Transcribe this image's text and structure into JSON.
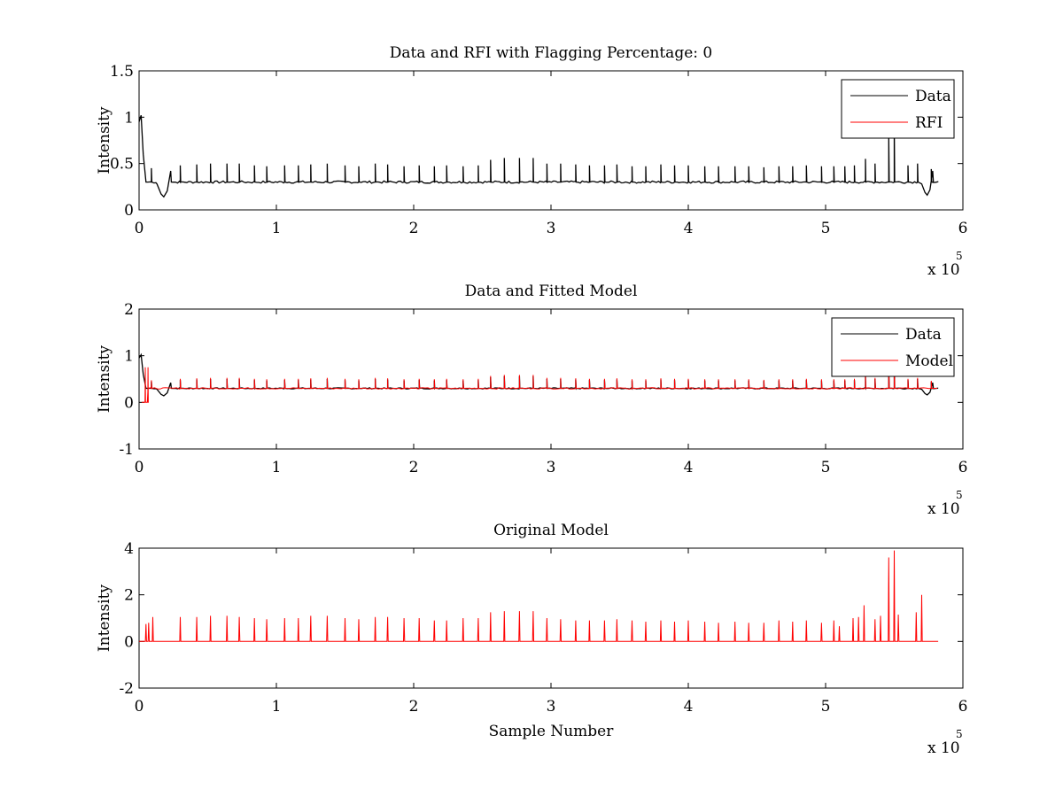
{
  "chart_data": [
    {
      "type": "line",
      "title": "Data and RFI with Flagging Percentage: 0",
      "xlabel": "",
      "ylabel": "Intensity",
      "xlim": [
        0,
        600000
      ],
      "ylim": [
        0,
        1.5
      ],
      "xticks": [
        0,
        100000,
        200000,
        300000,
        400000,
        500000,
        600000
      ],
      "xtick_labels": [
        "0",
        "1",
        "2",
        "3",
        "4",
        "5",
        "6"
      ],
      "yticks": [
        0,
        0.5,
        1,
        1.5
      ],
      "ytick_labels": [
        "0",
        "0.5",
        "1",
        "1.5"
      ],
      "x_multiplier_label": "x 10",
      "x_multiplier_exponent": "5",
      "legend_position": "top-right",
      "legend": [
        "Data",
        "RFI"
      ],
      "baseline": 0.3,
      "dips": [
        {
          "x": 18000,
          "depth": 0.16,
          "width": 5000
        },
        {
          "x": 574000,
          "depth": 0.14,
          "width": 4000
        }
      ],
      "onset": [
        [
          0,
          0.95
        ],
        [
          1500,
          1.02
        ],
        [
          3000,
          0.6
        ],
        [
          5000,
          0.3
        ]
      ],
      "spikes_x": [
        9000,
        30000,
        42000,
        52000,
        64000,
        73000,
        84000,
        93000,
        106000,
        116000,
        125000,
        137000,
        150000,
        160000,
        172000,
        181000,
        193000,
        204000,
        215000,
        224000,
        236000,
        247000,
        256000,
        266000,
        277000,
        287000,
        297000,
        307000,
        318000,
        328000,
        339000,
        348000,
        359000,
        369000,
        380000,
        390000,
        400000,
        412000,
        422000,
        434000,
        444000,
        455000,
        466000,
        476000,
        486000,
        497000,
        506000,
        514000,
        521000,
        529000,
        536000,
        546000,
        550000,
        560000,
        567000,
        577000
      ],
      "spikes_y": [
        0.45,
        0.48,
        0.49,
        0.5,
        0.5,
        0.5,
        0.48,
        0.47,
        0.48,
        0.48,
        0.49,
        0.5,
        0.48,
        0.47,
        0.5,
        0.49,
        0.47,
        0.48,
        0.47,
        0.48,
        0.47,
        0.48,
        0.54,
        0.56,
        0.56,
        0.56,
        0.5,
        0.5,
        0.49,
        0.48,
        0.48,
        0.49,
        0.47,
        0.47,
        0.49,
        0.48,
        0.48,
        0.47,
        0.47,
        0.47,
        0.47,
        0.46,
        0.47,
        0.47,
        0.48,
        0.47,
        0.47,
        0.47,
        0.48,
        0.55,
        0.5,
        0.78,
        0.95,
        0.48,
        0.5,
        0.44
      ],
      "series": [
        {
          "name": "Data",
          "color": "#000000"
        },
        {
          "name": "RFI",
          "color": "#ff0000"
        }
      ]
    },
    {
      "type": "line",
      "title": "Data and Fitted Model",
      "xlabel": "",
      "ylabel": "Intensity",
      "xlim": [
        0,
        600000
      ],
      "ylim": [
        -1,
        2
      ],
      "xticks": [
        0,
        100000,
        200000,
        300000,
        400000,
        500000,
        600000
      ],
      "xtick_labels": [
        "0",
        "1",
        "2",
        "3",
        "4",
        "5",
        "6"
      ],
      "yticks": [
        -1,
        0,
        1,
        2
      ],
      "ytick_labels": [
        "-1",
        "0",
        "1",
        "2"
      ],
      "x_multiplier_label": "x 10",
      "x_multiplier_exponent": "5",
      "legend_position": "top-right",
      "legend": [
        "Data",
        "Model"
      ],
      "baseline": 0.3,
      "model_start_x": 5000,
      "model_early_spikes": [
        [
          4500,
          0.75
        ],
        [
          6500,
          0.75
        ]
      ],
      "series": [
        {
          "name": "Data",
          "color": "#000000"
        },
        {
          "name": "Model",
          "color": "#ff0000"
        }
      ]
    },
    {
      "type": "line",
      "title": "Original Model",
      "xlabel": "Sample Number",
      "ylabel": "Intensity",
      "xlim": [
        0,
        600000
      ],
      "ylim": [
        -2,
        4
      ],
      "xticks": [
        0,
        100000,
        200000,
        300000,
        400000,
        500000,
        600000
      ],
      "xtick_labels": [
        "0",
        "1",
        "2",
        "3",
        "4",
        "5",
        "6"
      ],
      "yticks": [
        -2,
        0,
        2,
        4
      ],
      "ytick_labels": [
        "-2",
        "0",
        "2",
        "4"
      ],
      "x_multiplier_label": "x 10",
      "x_multiplier_exponent": "5",
      "x_end": 582000,
      "series": [
        {
          "name": "Original Model",
          "color": "#ff0000",
          "spikes_x": [
            5000,
            7000,
            10000,
            30000,
            42000,
            52000,
            64000,
            73000,
            84000,
            93000,
            106000,
            116000,
            125000,
            137000,
            150000,
            160000,
            172000,
            181000,
            193000,
            204000,
            215000,
            224000,
            236000,
            247000,
            256000,
            266000,
            277000,
            287000,
            297000,
            307000,
            318000,
            328000,
            339000,
            348000,
            359000,
            369000,
            380000,
            390000,
            400000,
            412000,
            422000,
            434000,
            444000,
            455000,
            466000,
            476000,
            486000,
            497000,
            506000,
            510000,
            520000,
            524000,
            528000,
            536000,
            540000,
            546000,
            550000,
            553000,
            566000,
            570000
          ],
          "spikes_y": [
            0.75,
            0.8,
            1.05,
            1.05,
            1.05,
            1.1,
            1.1,
            1.05,
            1.0,
            0.95,
            1.0,
            1.0,
            1.1,
            1.1,
            1.0,
            0.95,
            1.05,
            1.05,
            1.0,
            1.0,
            0.9,
            0.9,
            1.0,
            1.0,
            1.25,
            1.3,
            1.3,
            1.3,
            1.0,
            0.95,
            0.9,
            0.9,
            0.9,
            0.95,
            0.9,
            0.85,
            0.9,
            0.85,
            0.9,
            0.85,
            0.8,
            0.85,
            0.8,
            0.8,
            0.9,
            0.85,
            0.9,
            0.8,
            0.9,
            0.65,
            1.0,
            1.05,
            1.55,
            0.95,
            1.1,
            3.6,
            3.9,
            1.15,
            1.25,
            2.0
          ]
        }
      ]
    }
  ]
}
